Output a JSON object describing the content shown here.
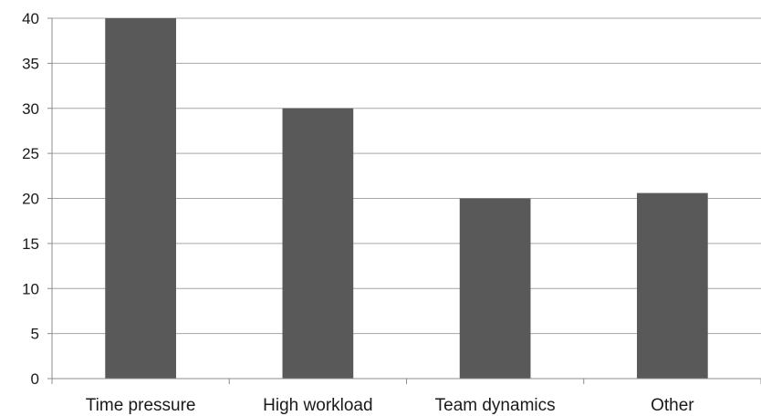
{
  "chart_data": {
    "type": "bar",
    "categories": [
      "Time pressure",
      "High workload",
      "Team dynamics",
      "Other"
    ],
    "series": [
      {
        "values": [
          40,
          30,
          20,
          20.6
        ]
      }
    ],
    "ylim": [
      0,
      40
    ],
    "yticks": [
      0,
      5,
      10,
      15,
      20,
      25,
      30,
      35,
      40
    ],
    "grid": true,
    "legend": "none",
    "colors": {
      "bar": "#595959",
      "grid": "#a6a6a6",
      "axis": "#8c8c8c"
    }
  }
}
